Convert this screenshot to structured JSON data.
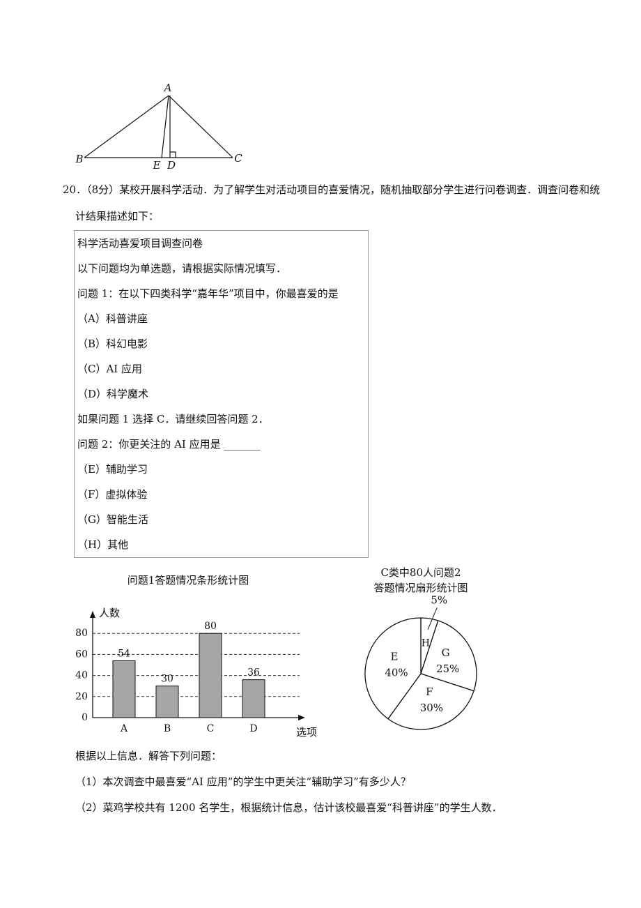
{
  "figure": {
    "points": [
      "A",
      "B",
      "C",
      "D",
      "E"
    ]
  },
  "question": {
    "number": "20．",
    "score": "（8分）",
    "text": "某校开展科学活动．为了解学生对活动项目的喜爱情况，随机抽取部分学生进行问卷调查．调查问卷和统计结果描述如下："
  },
  "survey": {
    "title": "科学活动喜爱项目调查问卷",
    "lines": [
      "以下问题均为单选题，请根据实际情况填写．",
      "问题 1：在以下四类科学“嘉年华”项目中，你最喜爱的是",
      "（A）科普讲座",
      "（B）科幻电影",
      "（C）AI 应用",
      "（D）科学魔术",
      "如果问题 1 选择 C．请继续回答问题 2．",
      "问题 2：你更关注的 AI 应用是 _______",
      "（E）辅助学习",
      "（F）虚拟体验",
      "（G）智能生活",
      "（H）其他"
    ]
  },
  "chart_data": [
    {
      "type": "bar",
      "title": "问题1答题情况条形统计图",
      "y_label": "人数",
      "x_label": "选项",
      "categories": [
        "A",
        "B",
        "C",
        "D"
      ],
      "values": [
        54,
        30,
        80,
        36
      ],
      "color": "#a6a6a6",
      "ylim": [
        0,
        100
      ],
      "yticks": [
        0,
        20,
        40,
        60,
        80
      ],
      "grid": true
    },
    {
      "type": "pie",
      "title": "C类中80人问题2",
      "subtitle": "答题情况扇形统计图",
      "categories": [
        "H",
        "G",
        "F",
        "E"
      ],
      "values": [
        5,
        25,
        30,
        40
      ],
      "value_labels": [
        "5%",
        "25%",
        "30%",
        "40%"
      ],
      "color": "#ffffff"
    }
  ],
  "followup": {
    "intro": "根据以上信息．解答下列问题：",
    "items": [
      "（1）本次调查中最喜爱“AI 应用”的学生中更关注“辅助学习”有多少人？",
      "（2）菜鸡学校共有 1200 名学生，根据统计信息，估计该校最喜爱“科普讲座”的学生人数．"
    ]
  }
}
